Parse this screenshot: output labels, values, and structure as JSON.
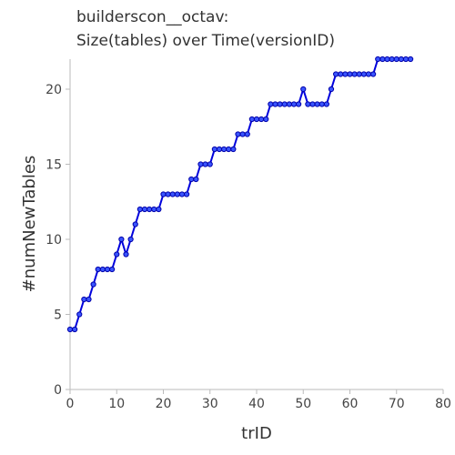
{
  "chart_data": {
    "type": "line",
    "title_lines": [
      "builderscon__octav:",
      "Size(tables) over Time(versionID)"
    ],
    "xlabel": "trID",
    "ylabel": "#numNewTables",
    "xlim": [
      0,
      80
    ],
    "ylim": [
      0,
      22
    ],
    "xticks": [
      0,
      10,
      20,
      30,
      40,
      50,
      60,
      70,
      80
    ],
    "yticks": [
      0,
      5,
      10,
      15,
      20
    ],
    "grid": false,
    "series": [
      {
        "x": [
          0,
          1,
          2,
          3,
          4,
          5,
          6,
          7,
          8,
          9,
          10,
          11,
          12,
          13,
          14,
          15,
          16,
          17,
          18,
          19,
          20,
          21,
          22,
          23,
          24,
          25,
          26,
          27,
          28,
          29,
          30,
          31,
          32,
          33,
          34,
          35,
          36,
          37,
          38,
          39,
          40,
          41,
          42,
          43,
          44,
          45,
          46,
          47,
          48,
          49,
          50,
          51,
          52,
          53,
          54,
          55,
          56,
          57,
          58,
          59,
          60,
          61,
          62,
          63,
          64,
          65,
          66,
          67,
          68,
          69,
          70,
          71,
          72,
          73
        ],
        "y": [
          4,
          4,
          5,
          6,
          6,
          7,
          8,
          8,
          8,
          8,
          9,
          10,
          9,
          10,
          11,
          12,
          12,
          12,
          12,
          12,
          13,
          13,
          13,
          13,
          13,
          13,
          14,
          14,
          15,
          15,
          15,
          16,
          16,
          16,
          16,
          16,
          17,
          17,
          17,
          18,
          18,
          18,
          18,
          19,
          19,
          19,
          19,
          19,
          19,
          19,
          20,
          19,
          19,
          19,
          19,
          19,
          20,
          21,
          21,
          21,
          21,
          21,
          21,
          21,
          21,
          21,
          22,
          22,
          22,
          22,
          22,
          22,
          22,
          22
        ]
      }
    ]
  }
}
